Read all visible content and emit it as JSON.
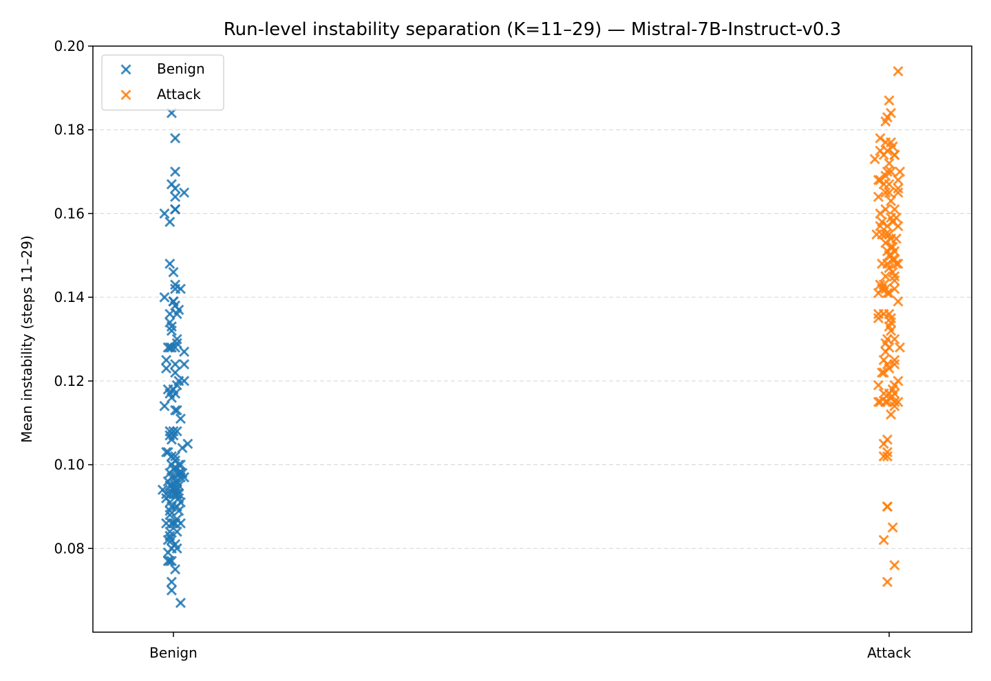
{
  "chart_data": {
    "type": "scatter",
    "title": "Run-level instability separation (K=11–29) — Mistral-7B-Instruct-v0.3",
    "xlabel": "",
    "ylabel": "Mean instability (steps 11–29)",
    "categories": [
      "Benign",
      "Attack"
    ],
    "ylim": [
      0.06,
      0.2
    ],
    "y_ticks": [
      "0.08",
      "0.10",
      "0.12",
      "0.14",
      "0.16",
      "0.18",
      "0.20"
    ],
    "grid": "y-dashed",
    "legend_position": "top-left",
    "marker": "x",
    "series": [
      {
        "name": "Benign",
        "color": "#1f77b4",
        "points": [
          [
            -0.01,
            0.184
          ],
          [
            0.01,
            0.178
          ],
          [
            0.01,
            0.17
          ],
          [
            -0.01,
            0.167
          ],
          [
            0.01,
            0.166
          ],
          [
            0.01,
            0.164
          ],
          [
            0.01,
            0.161
          ],
          [
            0.01,
            0.161
          ],
          [
            0.06,
            0.165
          ],
          [
            -0.05,
            0.16
          ],
          [
            -0.02,
            0.158
          ],
          [
            -0.02,
            0.148
          ],
          [
            0.0,
            0.146
          ],
          [
            0.01,
            0.143
          ],
          [
            0.01,
            0.142
          ],
          [
            0.04,
            0.142
          ],
          [
            -0.05,
            0.14
          ],
          [
            0.0,
            0.139
          ],
          [
            0.0,
            0.139
          ],
          [
            0.01,
            0.138
          ],
          [
            0.02,
            0.136
          ],
          [
            0.03,
            0.137
          ],
          [
            -0.02,
            0.136
          ],
          [
            -0.02,
            0.134
          ],
          [
            -0.01,
            0.133
          ],
          [
            -0.01,
            0.132
          ],
          [
            0.02,
            0.13
          ],
          [
            0.02,
            0.129
          ],
          [
            0.06,
            0.127
          ],
          [
            -0.02,
            0.128
          ],
          [
            -0.01,
            0.128
          ],
          [
            -0.03,
            0.128
          ],
          [
            0.01,
            0.128
          ],
          [
            0.01,
            0.124
          ],
          [
            0.06,
            0.124
          ],
          [
            -0.04,
            0.125
          ],
          [
            -0.04,
            0.123
          ],
          [
            0.01,
            0.122
          ],
          [
            0.06,
            0.12
          ],
          [
            0.02,
            0.119
          ],
          [
            0.03,
            0.12
          ],
          [
            -0.03,
            0.118
          ],
          [
            -0.02,
            0.117
          ],
          [
            0.0,
            0.118
          ],
          [
            -0.01,
            0.116
          ],
          [
            0.01,
            0.117
          ],
          [
            0.01,
            0.113
          ],
          [
            0.02,
            0.113
          ],
          [
            -0.05,
            0.114
          ],
          [
            0.04,
            0.111
          ],
          [
            -0.02,
            0.108
          ],
          [
            0.0,
            0.108
          ],
          [
            0.02,
            0.108
          ],
          [
            -0.02,
            0.107
          ],
          [
            0.0,
            0.107
          ],
          [
            -0.01,
            0.106
          ],
          [
            0.08,
            0.105
          ],
          [
            0.05,
            0.104
          ],
          [
            -0.04,
            0.103
          ],
          [
            -0.03,
            0.103
          ],
          [
            -0.01,
            0.102
          ],
          [
            0.01,
            0.102
          ],
          [
            0.01,
            0.101
          ],
          [
            0.03,
            0.1
          ],
          [
            0.04,
            0.1
          ],
          [
            -0.01,
            0.1
          ],
          [
            0.0,
            0.099
          ],
          [
            0.02,
            0.099
          ],
          [
            0.03,
            0.098
          ],
          [
            0.04,
            0.098
          ],
          [
            0.05,
            0.098
          ],
          [
            0.06,
            0.097
          ],
          [
            -0.02,
            0.098
          ],
          [
            -0.01,
            0.097
          ],
          [
            0.01,
            0.097
          ],
          [
            0.02,
            0.096
          ],
          [
            0.03,
            0.095
          ],
          [
            0.04,
            0.097
          ],
          [
            -0.03,
            0.096
          ],
          [
            -0.02,
            0.095
          ],
          [
            -0.01,
            0.095
          ],
          [
            0.0,
            0.094
          ],
          [
            0.01,
            0.095
          ],
          [
            0.02,
            0.094
          ],
          [
            0.03,
            0.093
          ],
          [
            -0.06,
            0.094
          ],
          [
            -0.04,
            0.093
          ],
          [
            -0.02,
            0.093
          ],
          [
            0.0,
            0.093
          ],
          [
            0.01,
            0.093
          ],
          [
            0.02,
            0.093
          ],
          [
            0.03,
            0.092
          ],
          [
            0.04,
            0.091
          ],
          [
            -0.04,
            0.092
          ],
          [
            -0.02,
            0.091
          ],
          [
            -0.01,
            0.09
          ],
          [
            0.02,
            0.09
          ],
          [
            0.03,
            0.089
          ],
          [
            -0.02,
            0.089
          ],
          [
            -0.02,
            0.088
          ],
          [
            -0.04,
            0.086
          ],
          [
            -0.01,
            0.086
          ],
          [
            0.0,
            0.086
          ],
          [
            0.01,
            0.086
          ],
          [
            0.02,
            0.087
          ],
          [
            0.04,
            0.086
          ],
          [
            -0.02,
            0.084
          ],
          [
            0.02,
            0.084
          ],
          [
            -0.02,
            0.083
          ],
          [
            -0.01,
            0.082
          ],
          [
            -0.03,
            0.082
          ],
          [
            0.01,
            0.081
          ],
          [
            0.02,
            0.08
          ],
          [
            -0.01,
            0.08
          ],
          [
            -0.03,
            0.079
          ],
          [
            -0.03,
            0.077
          ],
          [
            -0.02,
            0.077
          ],
          [
            -0.01,
            0.077
          ],
          [
            0.01,
            0.075
          ],
          [
            -0.01,
            0.072
          ],
          [
            -0.01,
            0.07
          ],
          [
            0.04,
            0.067
          ]
        ]
      },
      {
        "name": "Attack",
        "color": "#ff7f0e",
        "points": [
          [
            0.05,
            0.194
          ],
          [
            0.0,
            0.187
          ],
          [
            0.01,
            0.184
          ],
          [
            -0.01,
            0.183
          ],
          [
            -0.02,
            0.182
          ],
          [
            -0.05,
            0.178
          ],
          [
            -0.02,
            0.177
          ],
          [
            0.01,
            0.177
          ],
          [
            0.02,
            0.176
          ],
          [
            -0.01,
            0.175
          ],
          [
            0.03,
            0.174
          ],
          [
            -0.05,
            0.175
          ],
          [
            -0.08,
            0.173
          ],
          [
            -0.03,
            0.174
          ],
          [
            0.03,
            0.174
          ],
          [
            0.0,
            0.172
          ],
          [
            -0.01,
            0.17
          ],
          [
            0.01,
            0.17
          ],
          [
            0.06,
            0.17
          ],
          [
            -0.02,
            0.169
          ],
          [
            0.05,
            0.168
          ],
          [
            -0.06,
            0.168
          ],
          [
            -0.05,
            0.168
          ],
          [
            -0.03,
            0.167
          ],
          [
            0.0,
            0.167
          ],
          [
            0.05,
            0.166
          ],
          [
            -0.02,
            0.165
          ],
          [
            0.0,
            0.165
          ],
          [
            0.05,
            0.165
          ],
          [
            -0.06,
            0.164
          ],
          [
            0.01,
            0.163
          ],
          [
            -0.02,
            0.161
          ],
          [
            0.03,
            0.161
          ],
          [
            0.01,
            0.159
          ],
          [
            0.04,
            0.159
          ],
          [
            -0.05,
            0.16
          ],
          [
            -0.04,
            0.158
          ],
          [
            0.02,
            0.158
          ],
          [
            -0.01,
            0.157
          ],
          [
            0.05,
            0.157
          ],
          [
            -0.05,
            0.157
          ],
          [
            -0.02,
            0.155
          ],
          [
            0.0,
            0.155
          ],
          [
            -0.07,
            0.155
          ],
          [
            -0.04,
            0.155
          ],
          [
            0.01,
            0.154
          ],
          [
            0.04,
            0.154
          ],
          [
            -0.02,
            0.153
          ],
          [
            0.01,
            0.152
          ],
          [
            0.02,
            0.152
          ],
          [
            0.03,
            0.151
          ],
          [
            -0.01,
            0.151
          ],
          [
            0.0,
            0.15
          ],
          [
            0.01,
            0.15
          ],
          [
            0.02,
            0.149
          ],
          [
            0.03,
            0.149
          ],
          [
            0.04,
            0.148
          ],
          [
            -0.04,
            0.148
          ],
          [
            0.05,
            0.148
          ],
          [
            -0.01,
            0.148
          ],
          [
            0.0,
            0.147
          ],
          [
            0.02,
            0.146
          ],
          [
            0.03,
            0.145
          ],
          [
            0.03,
            0.144
          ],
          [
            -0.02,
            0.145
          ],
          [
            -0.05,
            0.143
          ],
          [
            -0.04,
            0.142
          ],
          [
            -0.02,
            0.142
          ],
          [
            -0.01,
            0.141
          ],
          [
            0.0,
            0.141
          ],
          [
            0.03,
            0.142
          ],
          [
            0.05,
            0.139
          ],
          [
            -0.06,
            0.141
          ],
          [
            -0.03,
            0.143
          ],
          [
            0.0,
            0.136
          ],
          [
            0.01,
            0.135
          ],
          [
            0.01,
            0.134
          ],
          [
            0.0,
            0.133
          ],
          [
            -0.03,
            0.136
          ],
          [
            -0.06,
            0.136
          ],
          [
            -0.06,
            0.135
          ],
          [
            0.01,
            0.132
          ],
          [
            0.03,
            0.13
          ],
          [
            -0.01,
            0.13
          ],
          [
            -0.02,
            0.129
          ],
          [
            0.0,
            0.128
          ],
          [
            0.06,
            0.128
          ],
          [
            -0.02,
            0.127
          ],
          [
            0.03,
            0.125
          ],
          [
            0.03,
            0.124
          ],
          [
            -0.03,
            0.125
          ],
          [
            -0.01,
            0.124
          ],
          [
            0.0,
            0.123
          ],
          [
            -0.03,
            0.122
          ],
          [
            -0.04,
            0.122
          ],
          [
            0.05,
            0.12
          ],
          [
            0.03,
            0.119
          ],
          [
            0.02,
            0.118
          ],
          [
            -0.06,
            0.119
          ],
          [
            -0.03,
            0.117
          ],
          [
            -0.06,
            0.115
          ],
          [
            0.0,
            0.117
          ],
          [
            0.01,
            0.116
          ],
          [
            0.03,
            0.117
          ],
          [
            0.03,
            0.115
          ],
          [
            0.05,
            0.115
          ],
          [
            0.03,
            0.114
          ],
          [
            -0.01,
            0.115
          ],
          [
            -0.05,
            0.115
          ],
          [
            -0.02,
            0.115
          ],
          [
            0.01,
            0.112
          ],
          [
            -0.01,
            0.106
          ],
          [
            -0.03,
            0.105
          ],
          [
            -0.01,
            0.103
          ],
          [
            -0.03,
            0.102
          ],
          [
            -0.01,
            0.102
          ],
          [
            -0.01,
            0.09
          ],
          [
            -0.01,
            0.09
          ],
          [
            0.02,
            0.085
          ],
          [
            -0.03,
            0.082
          ],
          [
            0.03,
            0.076
          ],
          [
            -0.01,
            0.072
          ]
        ]
      }
    ]
  }
}
